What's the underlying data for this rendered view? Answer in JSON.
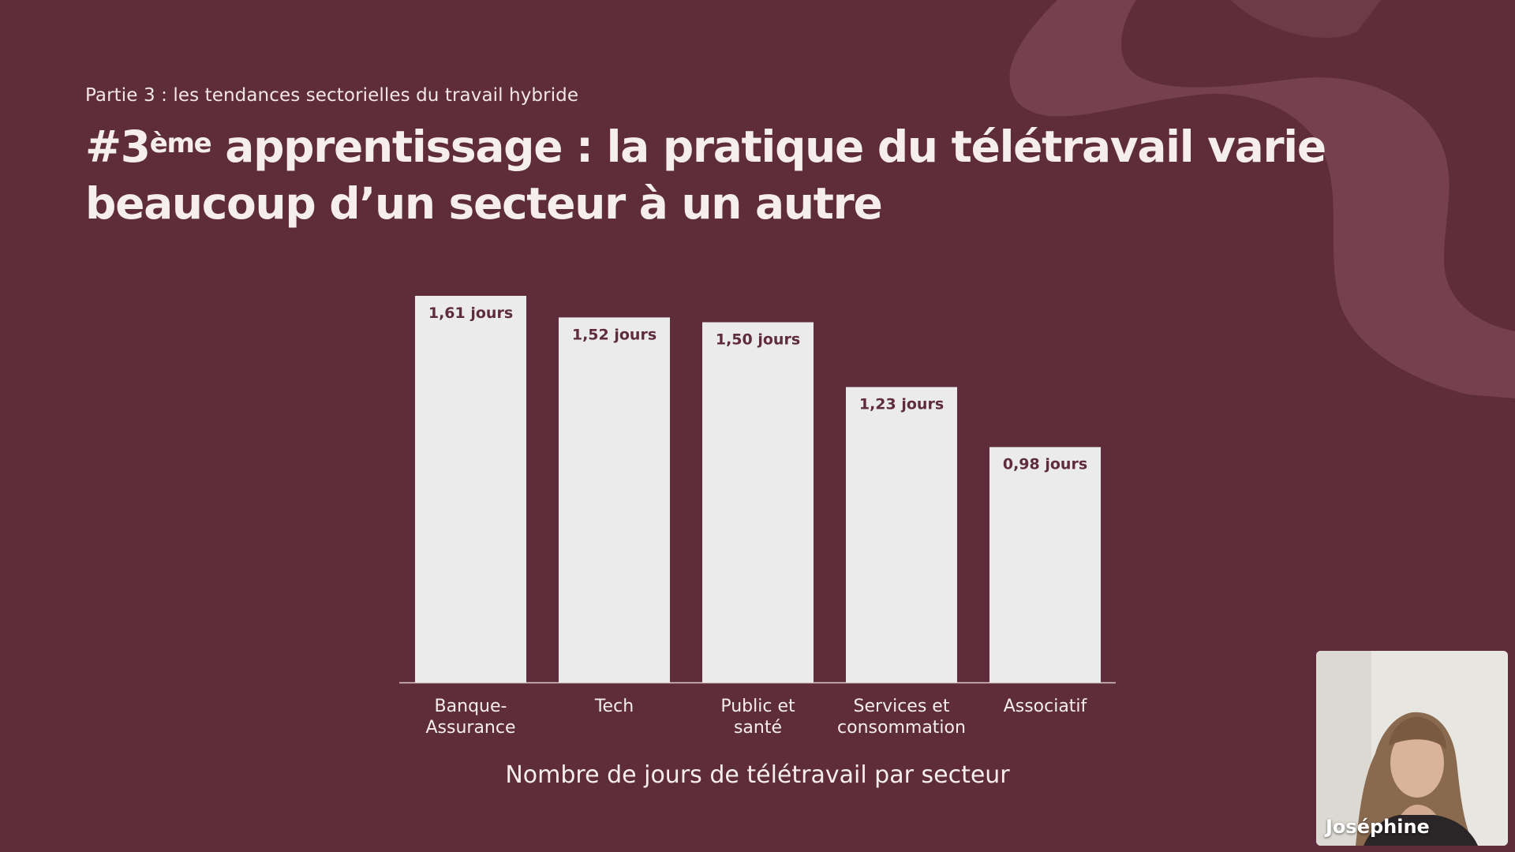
{
  "slide": {
    "section": "Partie 3 : les tendances sectorielles du travail hybride",
    "title_prefix": "#3",
    "title_superscript": "ème",
    "title_rest": " apprentissage : la pratique du télétravail varie beaucoup d’un secteur à un autre"
  },
  "colors": {
    "background": "#5e2c3b",
    "bar": "#ecebeb",
    "bar_label": "#5e2c3b",
    "decoration": "#7a4452"
  },
  "chart_data": {
    "type": "bar",
    "categories": [
      "Banque-\nAssurance",
      "Tech",
      "Public et\nsanté",
      "Services et\nconsommation",
      "Associatif"
    ],
    "values": [
      1.61,
      1.52,
      1.5,
      1.23,
      0.98
    ],
    "data_labels": [
      "1,61  jours",
      "1,52  jours",
      "1,50  jours",
      "1,23  jours",
      "0,98  jours"
    ],
    "xlabel": "Nombre de jours de télétravail par secteur",
    "ylabel": "",
    "ylim": [
      0,
      1.61
    ],
    "grid": false,
    "legend": "none"
  },
  "webcam": {
    "participant_name": "Joséphine"
  }
}
